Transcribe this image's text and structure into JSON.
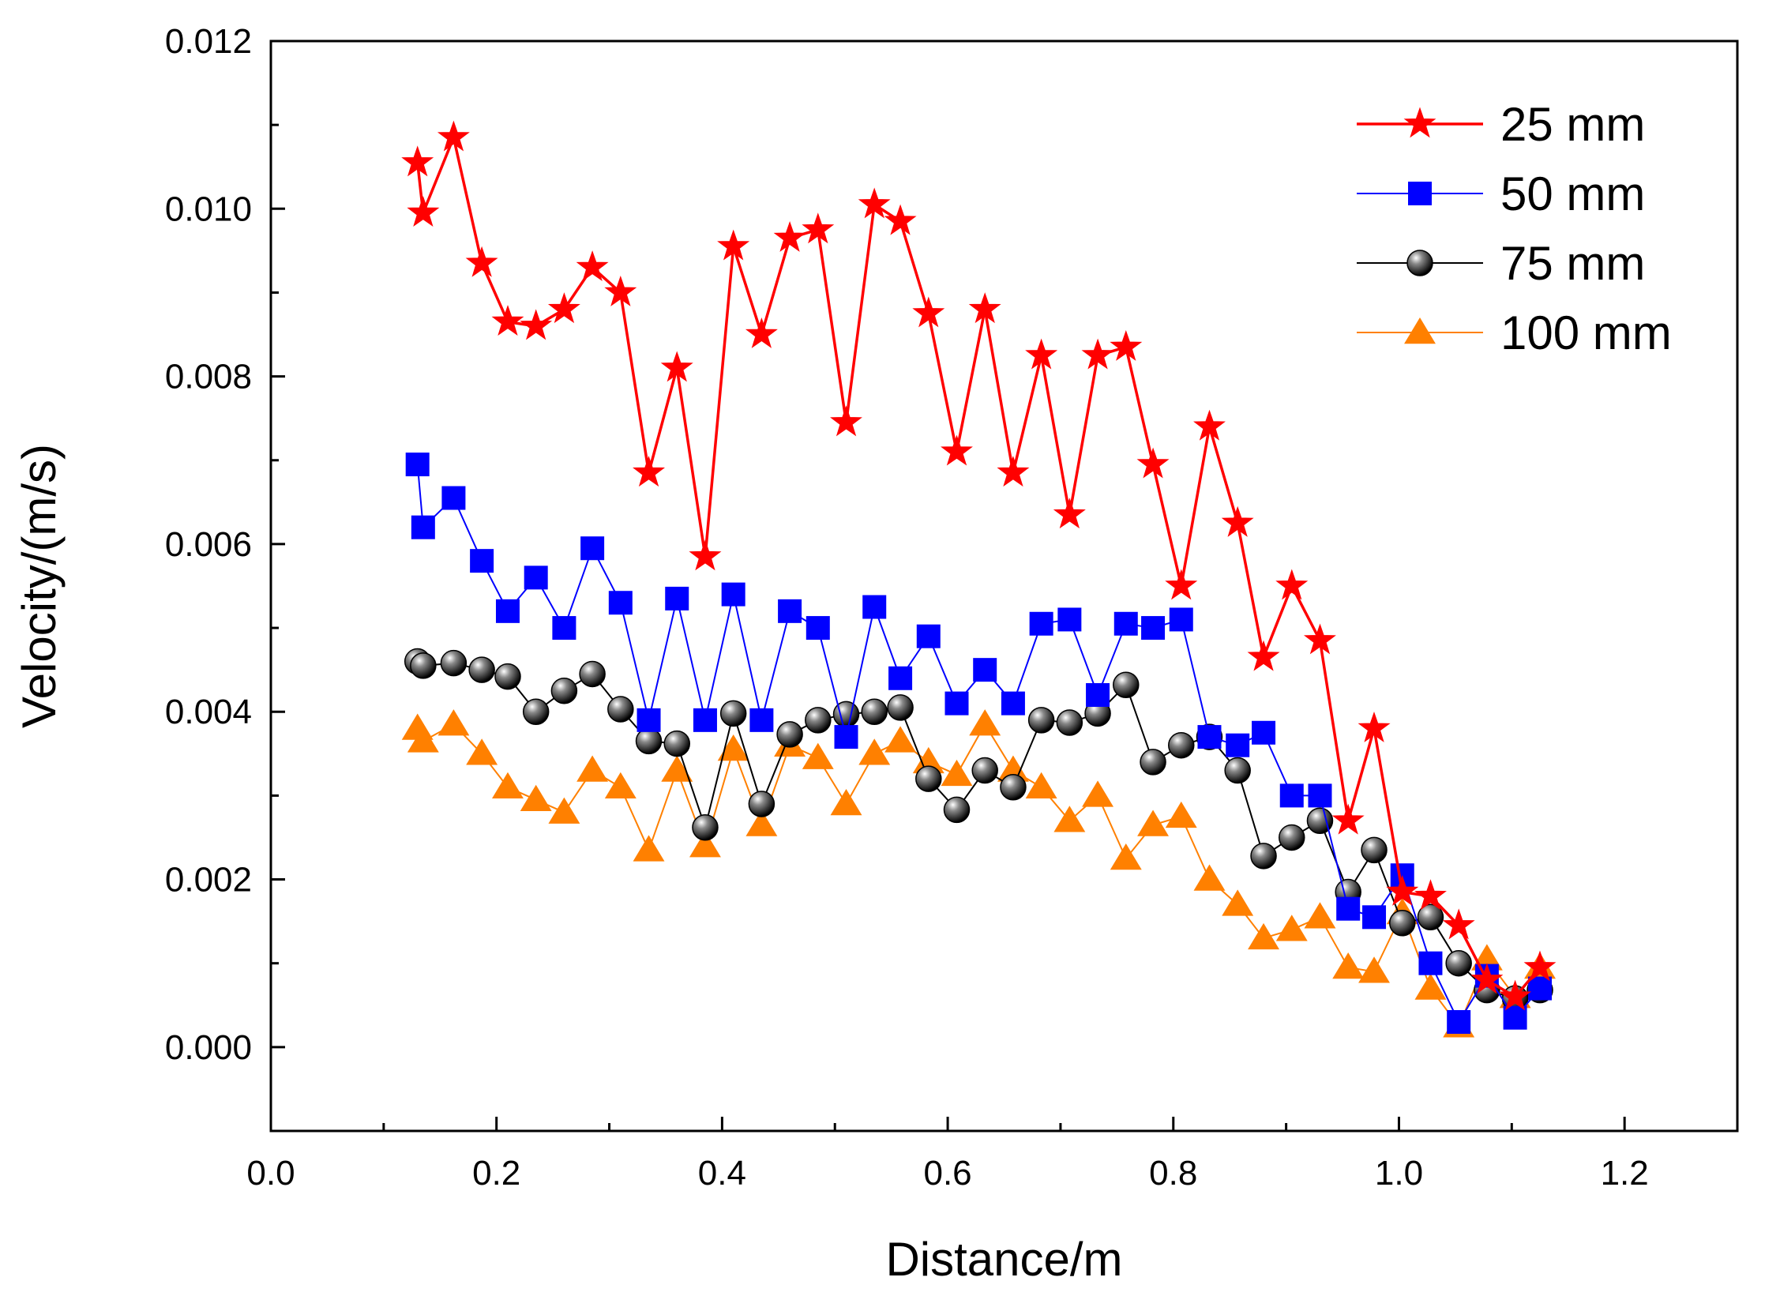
{
  "chart_data": {
    "type": "line",
    "title": "",
    "xlabel": "Distance/m",
    "ylabel": "Velocity/(m/s)",
    "xlim": [
      0.0,
      1.3
    ],
    "ylim": [
      -0.001,
      0.012
    ],
    "x_ticks": [
      0.0,
      0.2,
      0.4,
      0.6,
      0.8,
      1.0,
      1.2
    ],
    "x_tick_labels": [
      "0.0",
      "0.2",
      "0.4",
      "0.6",
      "0.8",
      "1.0",
      "1.2"
    ],
    "y_ticks": [
      0.0,
      0.002,
      0.004,
      0.006,
      0.008,
      0.01,
      0.012
    ],
    "y_tick_labels": [
      "0.000",
      "0.002",
      "0.004",
      "0.006",
      "0.008",
      "0.010",
      "0.012"
    ],
    "grid": false,
    "legend_position": "top-right",
    "series": [
      {
        "name": "25 mm",
        "color": "#ff0000",
        "marker": "star",
        "x": [
          0.13,
          0.135,
          0.162,
          0.187,
          0.21,
          0.235,
          0.26,
          0.285,
          0.31,
          0.335,
          0.36,
          0.385,
          0.41,
          0.435,
          0.46,
          0.485,
          0.51,
          0.535,
          0.558,
          0.583,
          0.608,
          0.633,
          0.658,
          0.683,
          0.708,
          0.733,
          0.758,
          0.782,
          0.807,
          0.832,
          0.857,
          0.88,
          0.905,
          0.93,
          0.955,
          0.978,
          1.003,
          1.028,
          1.053,
          1.078,
          1.103,
          1.125
        ],
        "values": [
          0.01055,
          0.00995,
          0.01085,
          0.00935,
          0.00865,
          0.0086,
          0.0088,
          0.0093,
          0.009,
          0.00685,
          0.0081,
          0.00585,
          0.00955,
          0.0085,
          0.00965,
          0.00975,
          0.00745,
          0.01005,
          0.00985,
          0.00875,
          0.0071,
          0.0088,
          0.00685,
          0.00825,
          0.00635,
          0.00825,
          0.00835,
          0.00695,
          0.0055,
          0.0074,
          0.00625,
          0.00465,
          0.0055,
          0.00485,
          0.0027,
          0.0038,
          0.00185,
          0.0018,
          0.00145,
          0.0008,
          0.0006,
          0.00095
        ]
      },
      {
        "name": "50 mm",
        "color": "#0000ff",
        "marker": "square",
        "x": [
          0.13,
          0.135,
          0.162,
          0.187,
          0.21,
          0.235,
          0.26,
          0.285,
          0.31,
          0.335,
          0.36,
          0.385,
          0.41,
          0.435,
          0.46,
          0.485,
          0.51,
          0.535,
          0.558,
          0.583,
          0.608,
          0.633,
          0.658,
          0.683,
          0.708,
          0.733,
          0.758,
          0.782,
          0.807,
          0.832,
          0.857,
          0.88,
          0.905,
          0.93,
          0.955,
          0.978,
          1.003,
          1.028,
          1.053,
          1.078,
          1.103,
          1.125
        ],
        "values": [
          0.00695,
          0.0062,
          0.00655,
          0.0058,
          0.0052,
          0.0056,
          0.005,
          0.00595,
          0.0053,
          0.0039,
          0.00535,
          0.0039,
          0.0054,
          0.0039,
          0.0052,
          0.005,
          0.0037,
          0.00525,
          0.0044,
          0.0049,
          0.0041,
          0.0045,
          0.0041,
          0.00505,
          0.0051,
          0.0042,
          0.00505,
          0.005,
          0.0051,
          0.0037,
          0.0036,
          0.00375,
          0.003,
          0.003,
          0.00165,
          0.00155,
          0.00205,
          0.001,
          0.0003,
          0.00085,
          0.00035,
          0.0007
        ]
      },
      {
        "name": "75 mm",
        "color": "#000000",
        "marker": "sphere",
        "x": [
          0.13,
          0.135,
          0.162,
          0.187,
          0.21,
          0.235,
          0.26,
          0.285,
          0.31,
          0.335,
          0.36,
          0.385,
          0.41,
          0.435,
          0.46,
          0.485,
          0.51,
          0.535,
          0.558,
          0.583,
          0.608,
          0.633,
          0.658,
          0.683,
          0.708,
          0.733,
          0.758,
          0.782,
          0.807,
          0.832,
          0.857,
          0.88,
          0.905,
          0.93,
          0.955,
          0.978,
          1.003,
          1.028,
          1.053,
          1.078,
          1.103,
          1.125
        ],
        "values": [
          0.0046,
          0.00455,
          0.00458,
          0.0045,
          0.00442,
          0.004,
          0.00425,
          0.00445,
          0.00403,
          0.00365,
          0.00362,
          0.00262,
          0.00398,
          0.0029,
          0.00373,
          0.0039,
          0.00397,
          0.004,
          0.00405,
          0.0032,
          0.00283,
          0.0033,
          0.0031,
          0.0039,
          0.00387,
          0.00398,
          0.00432,
          0.0034,
          0.0036,
          0.0037,
          0.0033,
          0.00228,
          0.0025,
          0.0027,
          0.00185,
          0.00235,
          0.00148,
          0.00155,
          0.001,
          0.00068,
          0.00058,
          0.00068
        ]
      },
      {
        "name": "100 mm",
        "color": "#ff8000",
        "marker": "triangle",
        "x": [
          0.13,
          0.135,
          0.162,
          0.187,
          0.21,
          0.235,
          0.26,
          0.285,
          0.31,
          0.335,
          0.36,
          0.385,
          0.41,
          0.435,
          0.46,
          0.485,
          0.51,
          0.535,
          0.558,
          0.583,
          0.608,
          0.633,
          0.658,
          0.683,
          0.708,
          0.733,
          0.758,
          0.782,
          0.807,
          0.832,
          0.857,
          0.88,
          0.905,
          0.93,
          0.955,
          0.978,
          1.003,
          1.028,
          1.053,
          1.078,
          1.103,
          1.125
        ],
        "values": [
          0.0038,
          0.00365,
          0.00385,
          0.0035,
          0.0031,
          0.00295,
          0.0028,
          0.0033,
          0.0031,
          0.00235,
          0.0033,
          0.0024,
          0.00355,
          0.00265,
          0.0036,
          0.00345,
          0.0029,
          0.0035,
          0.00365,
          0.0034,
          0.00325,
          0.00385,
          0.0033,
          0.0031,
          0.0027,
          0.003,
          0.00225,
          0.00265,
          0.00275,
          0.002,
          0.0017,
          0.0013,
          0.0014,
          0.00155,
          0.00095,
          0.0009,
          0.0016,
          0.0007,
          0.00025,
          0.00105,
          0.0006,
          0.00095
        ]
      }
    ]
  }
}
